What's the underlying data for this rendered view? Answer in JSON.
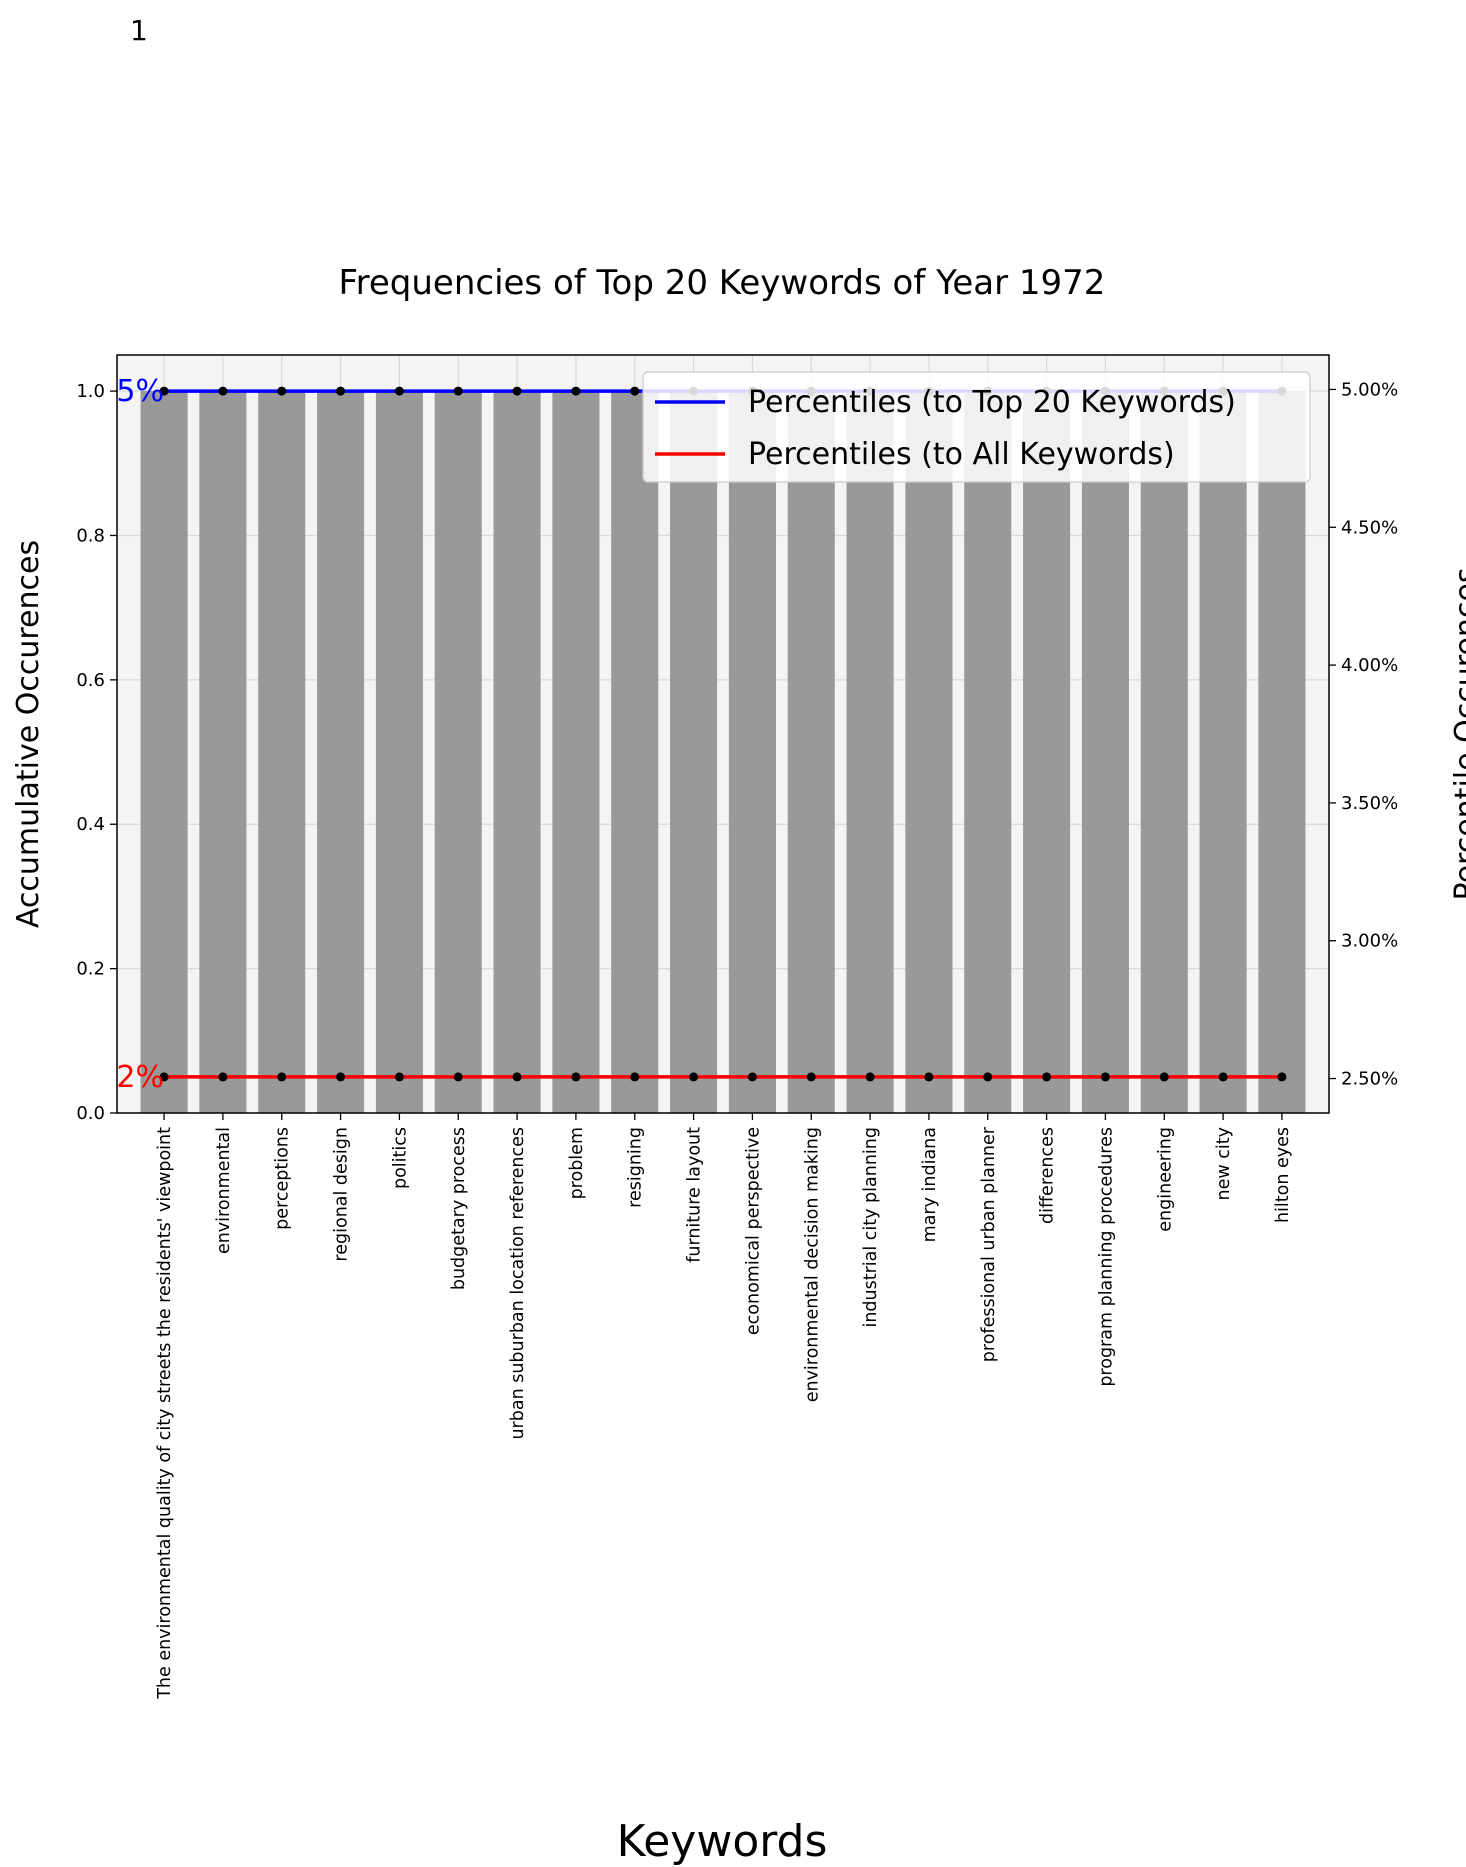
{
  "corner_label": "1",
  "chart_data": {
    "type": "bar",
    "title": "Frequencies of Top 20 Keywords of Year 1972",
    "xlabel": "Keywords",
    "ylabel": "Accumulative Occurences",
    "y2label": "Percentile Occurences",
    "ylim": [
      0,
      1.05
    ],
    "y2lim": [
      0.02375,
      0.05125
    ],
    "yticks": [
      0.0,
      0.2,
      0.4,
      0.6,
      0.8,
      1.0
    ],
    "ytick_labels": [
      "0.0",
      "0.2",
      "0.4",
      "0.6",
      "0.8",
      "1.0"
    ],
    "y2ticks": [
      0.025,
      0.03,
      0.035,
      0.04,
      0.045,
      0.05
    ],
    "y2tick_labels": [
      "2.50%",
      "3.00%",
      "3.50%",
      "4.00%",
      "4.50%",
      "5.00%"
    ],
    "grid": true,
    "legend_position": "top-right",
    "categories": [
      "The environmental quality of city streets the residents' viewpoint",
      "environmental",
      "perceptions",
      "regional design",
      "politics",
      "budgetary process",
      "urban suburban location references",
      "problem",
      "resigning",
      "furniture layout",
      "economical perspective",
      "environmental decision making",
      "industrial city planning",
      "mary indiana",
      "professional urban planner",
      "differences",
      "program planning procedures",
      "engineering",
      "new city",
      "hilton eyes"
    ],
    "values": [
      1,
      1,
      1,
      1,
      1,
      1,
      1,
      1,
      1,
      1,
      1,
      1,
      1,
      1,
      1,
      1,
      1,
      1,
      1,
      1
    ],
    "series": [
      {
        "name": "Percentiles (to Top 20 Keywords)",
        "color": "#0000ff",
        "values": [
          1,
          1,
          1,
          1,
          1,
          1,
          1,
          1,
          1,
          1,
          1,
          1,
          1,
          1,
          1,
          1,
          1,
          1,
          1,
          1
        ],
        "annotation": "5%"
      },
      {
        "name": "Percentiles (to All Keywords)",
        "color": "#ff0000",
        "values": [
          0.05,
          0.05,
          0.05,
          0.05,
          0.05,
          0.05,
          0.05,
          0.05,
          0.05,
          0.05,
          0.05,
          0.05,
          0.05,
          0.05,
          0.05,
          0.05,
          0.05,
          0.05,
          0.05,
          0.05
        ],
        "annotation": "2%"
      }
    ],
    "bar_color": "#999999",
    "plot_background": "#f4f4f4"
  }
}
